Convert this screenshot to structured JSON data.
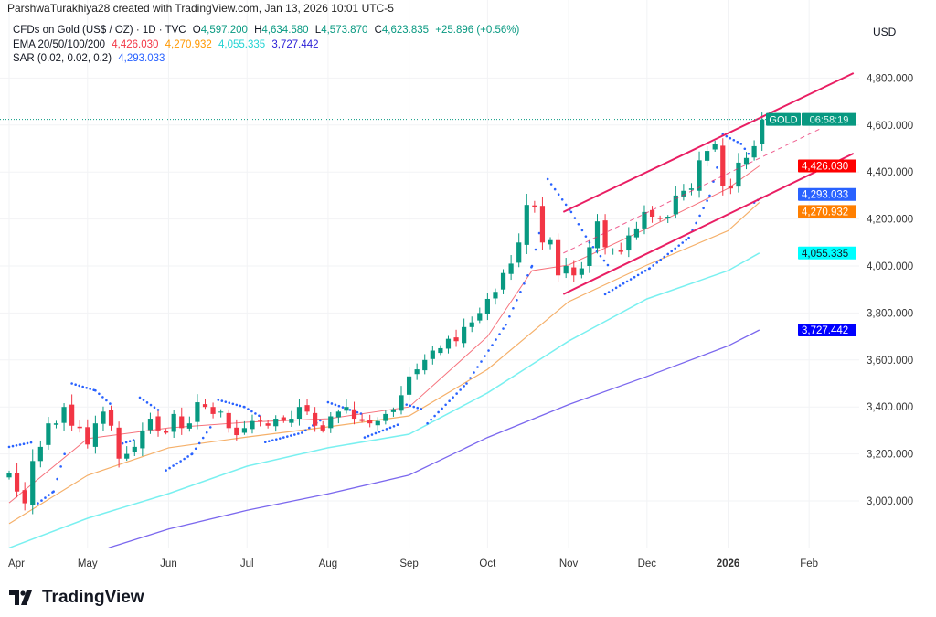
{
  "credit": "ParshwaTurakhiya28 created with TradingView.com, Jan 13, 2026 10:01 UTC-5",
  "legend": {
    "symbol": "CFDs on Gold (US$ / OZ) · 1D · TVC",
    "o_label": "O",
    "o": "4,597.200",
    "h_label": "H",
    "h": "4,634.580",
    "l_label": "L",
    "l": "4,573.870",
    "c_label": "C",
    "c": "4,623.835",
    "change": "+25.896 (+0.56%)",
    "ema_label": "EMA 20/50/100/200",
    "ema20": "4,426.030",
    "ema50": "4,270.932",
    "ema100": "4,055.335",
    "ema200": "3,727.442",
    "sar_label": "SAR (0.02, 0.02, 0.2)",
    "sar": "4,293.033"
  },
  "currency": "USD",
  "logo_text": "TradingView",
  "colors": {
    "up": "#089981",
    "down": "#f23645",
    "ema20": "#f23645",
    "ema50": "#ff9800",
    "ema100": "#00e5e5",
    "ema200": "#1a0dff",
    "sar": "#2962ff",
    "channel": "#e91e63",
    "price": "#089981"
  },
  "chart_data": {
    "type": "candlestick",
    "title": "CFDs on Gold (US$ / OZ) · 1D · TVC",
    "ylim": [
      2780,
      4900
    ],
    "xlim_days": [
      -3,
      326
    ],
    "start_date": "2025-04-01",
    "step_days": 3,
    "y_ticks": [
      {
        "v": 3000,
        "label": "3,000.000"
      },
      {
        "v": 3200,
        "label": "3,200.000"
      },
      {
        "v": 3400,
        "label": "3,400.000"
      },
      {
        "v": 3600,
        "label": "3,600.000"
      },
      {
        "v": 3800,
        "label": "3,800.000"
      },
      {
        "v": 4000,
        "label": "4,000.000"
      },
      {
        "v": 4200,
        "label": "4,200.000"
      },
      {
        "v": 4400,
        "label": "4,400.000"
      },
      {
        "v": 4600,
        "label": "4,600.000"
      },
      {
        "v": 4800,
        "label": "4,800.000"
      }
    ],
    "x_ticks": [
      {
        "day": 0,
        "label": "Apr"
      },
      {
        "day": 30,
        "label": "May"
      },
      {
        "day": 61,
        "label": "Jun"
      },
      {
        "day": 91,
        "label": "Jul"
      },
      {
        "day": 122,
        "label": "Aug"
      },
      {
        "day": 153,
        "label": "Sep"
      },
      {
        "day": 183,
        "label": "Oct"
      },
      {
        "day": 214,
        "label": "Nov"
      },
      {
        "day": 244,
        "label": "Dec"
      },
      {
        "day": 275,
        "label": "2026",
        "bold": true
      },
      {
        "day": 306,
        "label": "Feb"
      }
    ],
    "closes": [
      3120,
      3040,
      2990,
      3170,
      3230,
      3330,
      3330,
      3400,
      3320,
      3310,
      3240,
      3330,
      3380,
      3320,
      3180,
      3200,
      3230,
      3300,
      3350,
      3300,
      3290,
      3370,
      3310,
      3330,
      3420,
      3400,
      3370,
      3380,
      3310,
      3280,
      3310,
      3340,
      3340,
      3320,
      3350,
      3340,
      3350,
      3400,
      3380,
      3320,
      3300,
      3360,
      3380,
      3400,
      3350,
      3340,
      3330,
      3340,
      3370,
      3390,
      3450,
      3530,
      3560,
      3600,
      3640,
      3650,
      3690,
      3680,
      3740,
      3760,
      3800,
      3860,
      3890,
      3970,
      4010,
      4100,
      4260,
      4250,
      4100,
      4110,
      3960,
      4000,
      3960,
      3990,
      4080,
      4190,
      4080,
      4070,
      4060,
      4130,
      4160,
      4230,
      4210,
      4200,
      4210,
      4300,
      4320,
      4330,
      4450,
      4490,
      4520,
      4340,
      4330,
      4440,
      4460,
      4510,
      4623.835
    ],
    "ema": [
      {
        "name": "EMA 20",
        "value_label": "4,426.030",
        "last": 4426.03,
        "points": [
          [
            0,
            2992
          ],
          [
            30,
            3265
          ],
          [
            61,
            3311
          ],
          [
            91,
            3335
          ],
          [
            122,
            3350
          ],
          [
            153,
            3400
          ],
          [
            183,
            3700
          ],
          [
            200,
            3980
          ],
          [
            214,
            4004
          ],
          [
            244,
            4160
          ],
          [
            275,
            4330
          ],
          [
            287,
            4426.03
          ]
        ]
      },
      {
        "name": "EMA 50",
        "value_label": "4,270.932",
        "last": 4270.932,
        "points": [
          [
            0,
            2903
          ],
          [
            30,
            3109
          ],
          [
            61,
            3226
          ],
          [
            91,
            3272
          ],
          [
            122,
            3315
          ],
          [
            153,
            3362
          ],
          [
            183,
            3560
          ],
          [
            214,
            3848
          ],
          [
            244,
            4004
          ],
          [
            275,
            4150
          ],
          [
            287,
            4270.932
          ]
        ]
      },
      {
        "name": "EMA 100",
        "value_label": "4,055.335",
        "last": 4055.335,
        "points": [
          [
            0,
            2800
          ],
          [
            30,
            2926
          ],
          [
            61,
            3031
          ],
          [
            91,
            3148
          ],
          [
            122,
            3226
          ],
          [
            153,
            3284
          ],
          [
            183,
            3460
          ],
          [
            214,
            3680
          ],
          [
            244,
            3860
          ],
          [
            275,
            3980
          ],
          [
            287,
            4055.335
          ]
        ]
      },
      {
        "name": "EMA 200",
        "value_label": "3,727.442",
        "last": 3727.442,
        "points": [
          [
            38,
            2800
          ],
          [
            61,
            2880
          ],
          [
            91,
            2960
          ],
          [
            122,
            3030
          ],
          [
            153,
            3110
          ],
          [
            183,
            3270
          ],
          [
            214,
            3410
          ],
          [
            244,
            3530
          ],
          [
            275,
            3660
          ],
          [
            287,
            3727.442
          ]
        ]
      }
    ],
    "sar": {
      "value_label": "4,293.033",
      "segments": [
        {
          "side": "above",
          "points": [
            [
              0,
              3230
            ],
            [
              9,
              3250
            ]
          ]
        },
        {
          "side": "below",
          "points": [
            [
              11,
              2990
            ],
            [
              17,
              3040
            ],
            [
              22,
              3230
            ]
          ]
        },
        {
          "side": "above",
          "points": [
            [
              24,
              3500
            ],
            [
              33,
              3470
            ],
            [
              39,
              3410
            ]
          ]
        },
        {
          "side": "below",
          "points": [
            [
              42,
              3240
            ],
            [
              48,
              3260
            ]
          ]
        },
        {
          "side": "above",
          "points": [
            [
              50,
              3440
            ],
            [
              58,
              3380
            ]
          ]
        },
        {
          "side": "below",
          "points": [
            [
              60,
              3130
            ],
            [
              70,
              3200
            ],
            [
              78,
              3330
            ]
          ]
        },
        {
          "side": "above",
          "points": [
            [
              80,
              3430
            ],
            [
              90,
              3400
            ],
            [
              96,
              3360
            ]
          ]
        },
        {
          "side": "below",
          "points": [
            [
              98,
              3250
            ],
            [
              112,
              3290
            ],
            [
              120,
              3350
            ]
          ]
        },
        {
          "side": "above",
          "points": [
            [
              122,
              3420
            ],
            [
              135,
              3370
            ]
          ]
        },
        {
          "side": "below",
          "points": [
            [
              136,
              3270
            ],
            [
              150,
              3330
            ]
          ]
        },
        {
          "side": "above",
          "points": [
            [
              152,
              3410
            ],
            [
              158,
              3390
            ]
          ]
        },
        {
          "side": "below",
          "points": [
            [
              160,
              3330
            ],
            [
              175,
              3500
            ],
            [
              190,
              3750
            ],
            [
              200,
              4000
            ],
            [
              205,
              4250
            ]
          ]
        },
        {
          "side": "above",
          "points": [
            [
              206,
              4370
            ],
            [
              215,
              4230
            ],
            [
              222,
              4100
            ],
            [
              230,
              3990
            ]
          ]
        },
        {
          "side": "below",
          "points": [
            [
              228,
              3880
            ],
            [
              245,
              3990
            ],
            [
              260,
              4120
            ],
            [
              268,
              4300
            ],
            [
              272,
              4470
            ]
          ]
        },
        {
          "side": "above",
          "points": [
            [
              273,
              4560
            ],
            [
              280,
              4520
            ],
            [
              284,
              4460
            ]
          ]
        },
        {
          "side": "below",
          "points": [
            [
              285,
              4270
            ],
            [
              288,
              4293
            ]
          ]
        }
      ]
    },
    "channel": {
      "upper": [
        [
          212,
          4230
        ],
        [
          323,
          4821
        ]
      ],
      "lower": [
        [
          212,
          3880
        ],
        [
          323,
          4479
        ]
      ],
      "middle": [
        [
          212,
          4055
        ],
        [
          311,
          4588
        ]
      ]
    },
    "last_price": 4623.835,
    "price_badge": {
      "symbol": "GOLD",
      "countdown": "06:58:19"
    }
  }
}
